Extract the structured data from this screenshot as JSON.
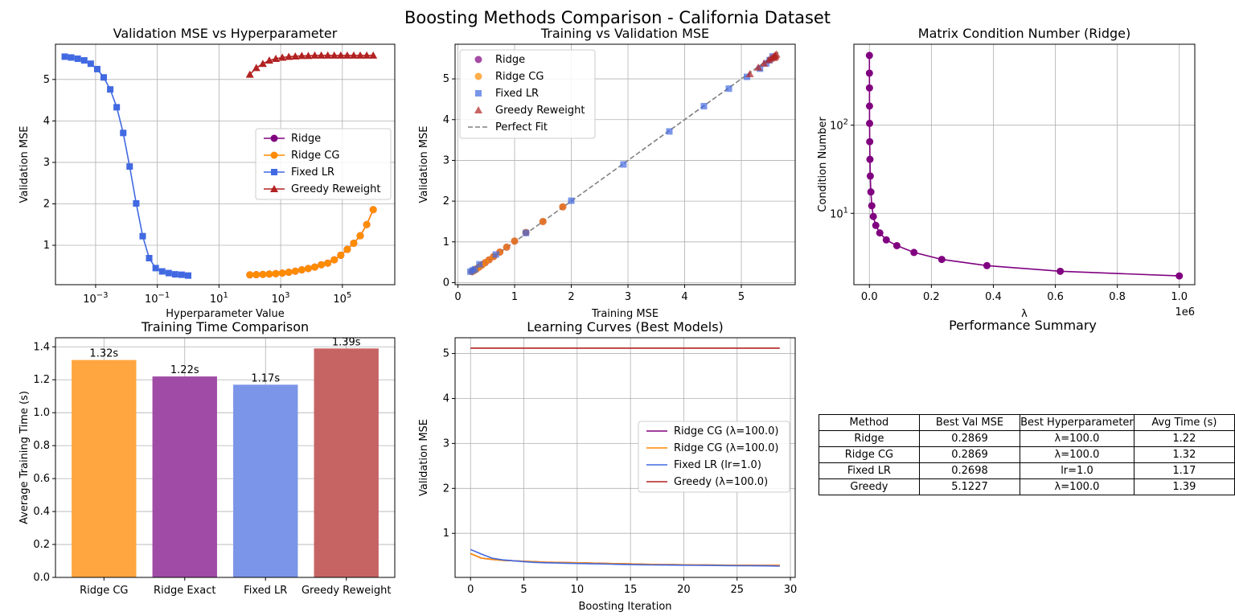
{
  "figure": {
    "title": "Boosting Methods Comparison - California Dataset"
  },
  "colors": {
    "ridge": "#800080",
    "ridge_cg": "#ff8c00",
    "fixed_lr": "#4169e1",
    "greedy": "#b22222",
    "perfect_fit": "#808080"
  },
  "chart_data": [
    {
      "id": "val-mse-vs-hyper",
      "type": "line",
      "title": "Validation MSE vs Hyperparameter",
      "xlabel": "Hyperparameter Value",
      "ylabel": "Validation MSE",
      "xscale": "log",
      "xlim": [
        5e-05,
        5000000
      ],
      "ylim": [
        0.05,
        5.85
      ],
      "grid": true,
      "legend": "center-right",
      "xticks": [
        {
          "v": 0.001,
          "b": "10",
          "e": "−3"
        },
        {
          "v": 0.1,
          "b": "10",
          "e": "−1"
        },
        {
          "v": 10,
          "b": "10",
          "e": "1"
        },
        {
          "v": 1000,
          "b": "10",
          "e": "3"
        },
        {
          "v": 100000,
          "b": "10",
          "e": "5"
        }
      ],
      "yticks": [
        1,
        2,
        3,
        4,
        5
      ],
      "series": [
        {
          "name": "Ridge",
          "color": "#800080",
          "marker": "o",
          "x": [
            100,
            162,
            264,
            428,
            695,
            1129,
            1833,
            2976,
            4833,
            7848,
            12743,
            20691,
            33598,
            54556,
            88587,
            143845,
            233572,
            379269,
            615848,
            1000000
          ],
          "y": [
            0.287,
            0.292,
            0.298,
            0.306,
            0.316,
            0.33,
            0.35,
            0.376,
            0.408,
            0.44,
            0.475,
            0.53,
            0.57,
            0.65,
            0.76,
            0.9,
            1.05,
            1.23,
            1.5,
            1.86
          ]
        },
        {
          "name": "Ridge CG",
          "color": "#ff8c00",
          "marker": "o",
          "x": [
            100,
            162,
            264,
            428,
            695,
            1129,
            1833,
            2976,
            4833,
            7848,
            12743,
            20691,
            33598,
            54556,
            88587,
            143845,
            233572,
            379269,
            615848,
            1000000
          ],
          "y": [
            0.287,
            0.292,
            0.298,
            0.306,
            0.316,
            0.33,
            0.35,
            0.376,
            0.408,
            0.44,
            0.475,
            0.53,
            0.57,
            0.65,
            0.76,
            0.9,
            1.05,
            1.23,
            1.5,
            1.86
          ]
        },
        {
          "name": "Fixed LR",
          "color": "#4169e1",
          "marker": "s",
          "x": [
            0.0001,
            0.000162,
            0.000264,
            0.000428,
            0.000695,
            0.00113,
            0.00183,
            0.00298,
            0.00483,
            0.00785,
            0.0127,
            0.0207,
            0.0336,
            0.0546,
            0.0886,
            0.144,
            0.234,
            0.379,
            0.616,
            1.0
          ],
          "y": [
            5.55,
            5.53,
            5.5,
            5.46,
            5.38,
            5.25,
            5.05,
            4.76,
            4.33,
            3.71,
            2.9,
            2.01,
            1.22,
            0.69,
            0.45,
            0.37,
            0.33,
            0.3,
            0.29,
            0.27
          ]
        },
        {
          "name": "Greedy Reweight",
          "color": "#b22222",
          "marker": "^",
          "x": [
            100,
            162,
            264,
            428,
            695,
            1129,
            1833,
            2976,
            4833,
            7848,
            12743,
            20691,
            33598,
            54556,
            88587,
            143845,
            233572,
            379269,
            615848,
            1000000
          ],
          "y": [
            5.12,
            5.28,
            5.38,
            5.46,
            5.5,
            5.53,
            5.55,
            5.56,
            5.57,
            5.57,
            5.58,
            5.58,
            5.58,
            5.58,
            5.58,
            5.58,
            5.58,
            5.58,
            5.58,
            5.58
          ]
        }
      ]
    },
    {
      "id": "train-vs-val",
      "type": "scatter",
      "title": "Training vs Validation MSE",
      "xlabel": "Training MSE",
      "ylabel": "Validation MSE",
      "xlim": [
        -0.05,
        5.95
      ],
      "ylim": [
        -0.05,
        5.85
      ],
      "grid": true,
      "legend": "top-left",
      "xticks": [
        0,
        1,
        2,
        3,
        4,
        5
      ],
      "yticks": [
        0,
        1,
        2,
        3,
        4,
        5
      ],
      "perfect_fit": {
        "name": "Perfect Fit",
        "x": [
          0.24,
          5.65
        ],
        "y": [
          0.24,
          5.65
        ]
      },
      "series": [
        {
          "name": "Ridge",
          "color": "#800080",
          "marker": "o",
          "x": [
            0.25,
            0.27,
            0.3,
            0.33,
            0.37,
            0.42,
            0.48,
            0.55,
            0.63,
            0.74,
            0.86,
            1.0,
            1.2,
            1.5,
            1.85
          ],
          "y": [
            0.27,
            0.29,
            0.31,
            0.34,
            0.38,
            0.43,
            0.49,
            0.56,
            0.64,
            0.75,
            0.87,
            1.02,
            1.23,
            1.5,
            1.86
          ]
        },
        {
          "name": "Ridge CG",
          "color": "#ff8c00",
          "marker": "o",
          "x": [
            0.25,
            0.27,
            0.3,
            0.33,
            0.37,
            0.42,
            0.48,
            0.55,
            0.63,
            0.74,
            0.86,
            1.0,
            1.2,
            1.5,
            1.85
          ],
          "y": [
            0.27,
            0.29,
            0.31,
            0.34,
            0.38,
            0.43,
            0.49,
            0.56,
            0.64,
            0.75,
            0.87,
            1.02,
            1.23,
            1.5,
            1.86
          ]
        },
        {
          "name": "Fixed LR",
          "color": "#4169e1",
          "marker": "s",
          "x": [
            0.22,
            0.26,
            0.3,
            0.38,
            0.67,
            1.2,
            2.0,
            2.92,
            3.73,
            4.34,
            4.78,
            5.1,
            5.33,
            5.44,
            5.5,
            5.55
          ],
          "y": [
            0.27,
            0.3,
            0.33,
            0.45,
            0.69,
            1.22,
            2.01,
            2.9,
            3.71,
            4.33,
            4.76,
            5.05,
            5.25,
            5.38,
            5.46,
            5.55
          ]
        },
        {
          "name": "Greedy Reweight",
          "color": "#b22222",
          "marker": "^",
          "x": [
            5.15,
            5.3,
            5.4,
            5.48,
            5.52,
            5.55,
            5.58,
            5.6,
            5.62,
            5.6,
            5.58
          ],
          "y": [
            5.12,
            5.28,
            5.38,
            5.46,
            5.5,
            5.53,
            5.56,
            5.58,
            5.6,
            5.55,
            5.52
          ]
        }
      ]
    },
    {
      "id": "condition-number",
      "type": "line",
      "title": "Matrix Condition Number (Ridge)",
      "xlabel": "λ",
      "ylabel": "Condition Number",
      "yscale": "log",
      "xlim": [
        -50000,
        1050000
      ],
      "ylim": [
        1.55,
        830
      ],
      "grid": true,
      "x_offset_label": "1e6",
      "xticks": [
        {
          "v": 0,
          "l": "0.0"
        },
        {
          "v": 200000,
          "l": "0.2"
        },
        {
          "v": 400000,
          "l": "0.4"
        },
        {
          "v": 600000,
          "l": "0.6"
        },
        {
          "v": 800000,
          "l": "0.8"
        },
        {
          "v": 1000000,
          "l": "1.0"
        }
      ],
      "yticks": [
        {
          "v": 10,
          "b": "10",
          "e": "1"
        },
        {
          "v": 100,
          "b": "10",
          "e": "2"
        }
      ],
      "series": [
        {
          "name": "Ridge",
          "color": "#800080",
          "marker": "o",
          "x": [
            100,
            162,
            264,
            428,
            695,
            1129,
            1833,
            2976,
            4833,
            7848,
            12743,
            20691,
            33598,
            54556,
            88587,
            143845,
            233572,
            379269,
            615848,
            1000000
          ],
          "y": [
            620,
            390,
            265,
            165,
            105,
            65,
            41,
            26.5,
            17.5,
            12.2,
            9.2,
            7.3,
            6.0,
            5.0,
            4.3,
            3.6,
            3.0,
            2.55,
            2.2,
            1.95
          ]
        }
      ]
    },
    {
      "id": "training-time",
      "type": "bar",
      "title": "Training Time Comparison",
      "xlabel": "",
      "ylabel": "Average Training Time (s)",
      "ylim": [
        0,
        1.455
      ],
      "grid": true,
      "yticks": [
        0.0,
        0.2,
        0.4,
        0.6,
        0.8,
        1.0,
        1.2,
        1.4
      ],
      "categories": [
        "Ridge CG",
        "Ridge Exact",
        "Fixed LR",
        "Greedy Reweight"
      ],
      "values": [
        1.32,
        1.22,
        1.17,
        1.39
      ],
      "value_labels": [
        "1.32s",
        "1.22s",
        "1.17s",
        "1.39s"
      ],
      "bar_colors": [
        "#ffa640",
        "#a04ca6",
        "#7b95e8",
        "#c66464"
      ]
    },
    {
      "id": "learning-curves",
      "type": "line",
      "title": "Learning Curves (Best Models)",
      "xlabel": "Boosting Iteration",
      "ylabel": "Validation MSE",
      "xlim": [
        -1.45,
        30.45
      ],
      "ylim": [
        0.02,
        5.35
      ],
      "grid": true,
      "legend": "center-right",
      "xticks": [
        0,
        5,
        10,
        15,
        20,
        25,
        30
      ],
      "yticks": [
        1,
        2,
        3,
        4,
        5
      ],
      "series": [
        {
          "name": "Ridge CG (λ=100.0)",
          "color": "#800080",
          "x": [
            0,
            1,
            2,
            3,
            4,
            5,
            6,
            7,
            8,
            9,
            10,
            11,
            12,
            13,
            14,
            15,
            16,
            17,
            18,
            19,
            20,
            21,
            22,
            23,
            24,
            25,
            26,
            27,
            28,
            29
          ],
          "y": [
            0.55,
            0.45,
            0.42,
            0.4,
            0.39,
            0.38,
            0.37,
            0.36,
            0.355,
            0.35,
            0.345,
            0.34,
            0.335,
            0.33,
            0.325,
            0.32,
            0.315,
            0.31,
            0.307,
            0.304,
            0.301,
            0.298,
            0.296,
            0.294,
            0.292,
            0.291,
            0.29,
            0.289,
            0.288,
            0.287
          ]
        },
        {
          "name": "Ridge CG (λ=100.0)",
          "color": "#ff8c00",
          "x": [
            0,
            1,
            2,
            3,
            4,
            5,
            6,
            7,
            8,
            9,
            10,
            11,
            12,
            13,
            14,
            15,
            16,
            17,
            18,
            19,
            20,
            21,
            22,
            23,
            24,
            25,
            26,
            27,
            28,
            29
          ],
          "y": [
            0.55,
            0.45,
            0.42,
            0.4,
            0.39,
            0.38,
            0.37,
            0.36,
            0.355,
            0.35,
            0.345,
            0.34,
            0.335,
            0.33,
            0.325,
            0.32,
            0.315,
            0.31,
            0.307,
            0.304,
            0.301,
            0.298,
            0.296,
            0.294,
            0.292,
            0.291,
            0.29,
            0.289,
            0.288,
            0.287
          ]
        },
        {
          "name": "Fixed LR (lr=1.0)",
          "color": "#4169e1",
          "x": [
            0,
            1,
            2,
            3,
            4,
            5,
            6,
            7,
            8,
            9,
            10,
            11,
            12,
            13,
            14,
            15,
            16,
            17,
            18,
            19,
            20,
            21,
            22,
            23,
            24,
            25,
            26,
            27,
            28,
            29
          ],
          "y": [
            0.64,
            0.54,
            0.45,
            0.41,
            0.39,
            0.37,
            0.355,
            0.345,
            0.34,
            0.335,
            0.33,
            0.325,
            0.32,
            0.315,
            0.31,
            0.305,
            0.3,
            0.298,
            0.295,
            0.293,
            0.291,
            0.289,
            0.287,
            0.285,
            0.283,
            0.281,
            0.279,
            0.277,
            0.275,
            0.27
          ]
        },
        {
          "name": "Greedy (λ=100.0)",
          "color": "#b22222",
          "x": [
            0,
            29
          ],
          "y": [
            5.12,
            5.12
          ]
        }
      ]
    }
  ],
  "summary": {
    "title": "Performance Summary",
    "headers": [
      "Method",
      "Best Val MSE",
      "Best Hyperparameter",
      "Avg Time (s)"
    ],
    "rows": [
      [
        "Ridge",
        "0.2869",
        "λ=100.0",
        "1.22"
      ],
      [
        "Ridge CG",
        "0.2869",
        "λ=100.0",
        "1.32"
      ],
      [
        "Fixed LR",
        "0.2698",
        "lr=1.0",
        "1.17"
      ],
      [
        "Greedy",
        "5.1227",
        "λ=100.0",
        "1.39"
      ]
    ]
  }
}
